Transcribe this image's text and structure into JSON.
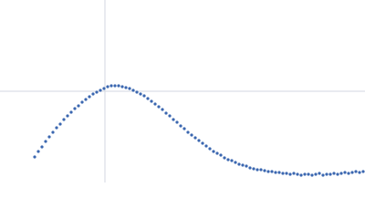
{
  "chart_data": {
    "type": "scatter",
    "color": "#3b67b0",
    "grid": true,
    "xlim": [
      -115,
      285
    ],
    "ylim": [
      -100,
      100
    ],
    "xticks": [
      0
    ],
    "yticks": [
      0
    ],
    "x": [
      -77,
      -73,
      -69,
      -65,
      -61,
      -57,
      -53,
      -49,
      -45,
      -41,
      -37,
      -33,
      -29,
      -25,
      -21,
      -17,
      -13,
      -9,
      -5,
      -1,
      3,
      7,
      11,
      15,
      19,
      23,
      27,
      31,
      35,
      39,
      43,
      47,
      51,
      55,
      59,
      63,
      67,
      71,
      75,
      79,
      83,
      87,
      91,
      95,
      99,
      103,
      107,
      111,
      115,
      119,
      123,
      127,
      131,
      135,
      139,
      143,
      147,
      151,
      155,
      159,
      163,
      167,
      171,
      175,
      179,
      183,
      187,
      191,
      195,
      199,
      203,
      207,
      211,
      215,
      219,
      223,
      227,
      231,
      235,
      239,
      243,
      247,
      251,
      255,
      259,
      263,
      267,
      271,
      275,
      279,
      283
    ],
    "values": [
      -72,
      -66,
      -61,
      -55,
      -50,
      -45,
      -40,
      -36,
      -31,
      -27,
      -23,
      -19,
      -16,
      -12,
      -9,
      -6,
      -3,
      -1,
      1,
      3,
      5,
      6,
      6,
      6,
      5,
      4,
      3,
      1,
      -1,
      -3,
      -5,
      -8,
      -11,
      -14,
      -17,
      -20,
      -24,
      -27,
      -31,
      -34,
      -38,
      -41,
      -45,
      -48,
      -51,
      -54,
      -57,
      -60,
      -63,
      -66,
      -68,
      -70,
      -73,
      -75,
      -76,
      -78,
      -80,
      -81,
      -82,
      -84,
      -85,
      -86,
      -86,
      -87,
      -88,
      -88,
      -89,
      -89,
      -90,
      -90,
      -91,
      -90,
      -91,
      -92,
      -91,
      -91,
      -92,
      -91,
      -90,
      -92,
      -91,
      -91,
      -90,
      -91,
      -90,
      -89,
      -90,
      -89,
      -88,
      -89,
      -88
    ]
  }
}
